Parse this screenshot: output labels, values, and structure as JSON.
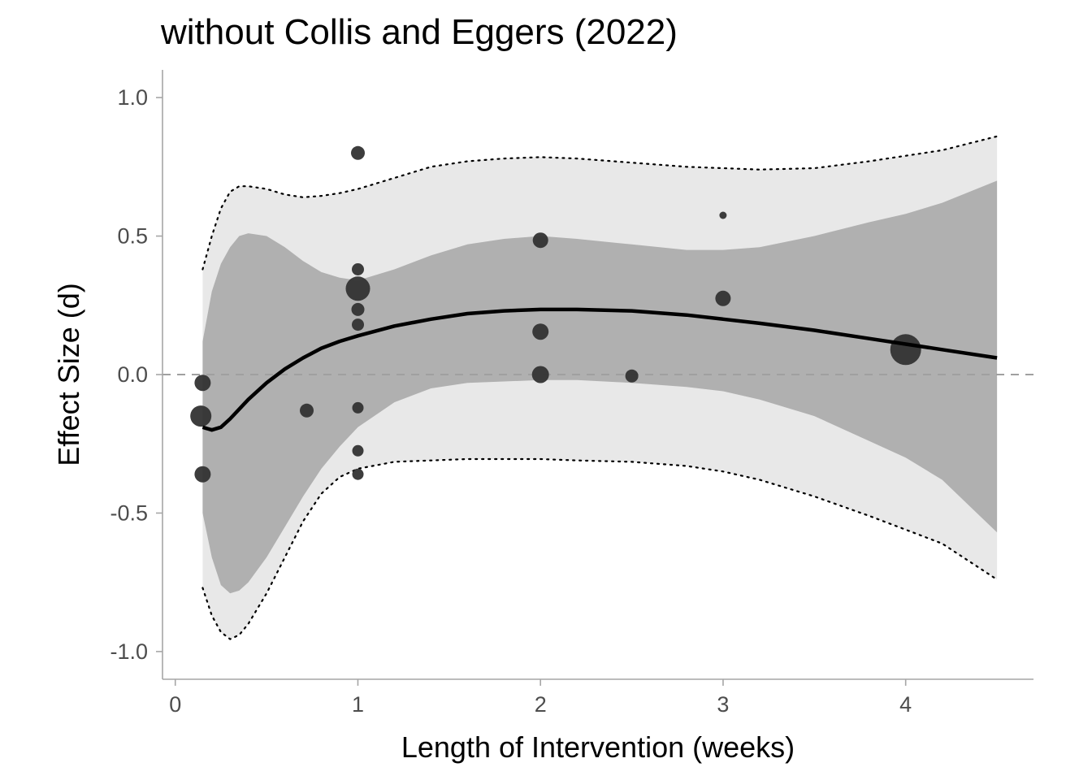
{
  "chart_data": {
    "type": "scatter",
    "title": "without Collis and Eggers (2022)",
    "xlabel": "Length of Intervention (weeks)",
    "ylabel": "Effect Size (d)",
    "xlim": [
      -0.07,
      4.7
    ],
    "ylim": [
      -1.1,
      1.1
    ],
    "x_ticks": [
      0,
      1,
      2,
      3,
      4
    ],
    "x_tick_labels": [
      "0",
      "1",
      "2",
      "3",
      "4"
    ],
    "y_ticks": [
      1.0,
      0.5,
      0.0,
      -0.5,
      -1.0
    ],
    "y_tick_labels": [
      "1.0",
      "0.5",
      "0.0",
      "-0.5",
      "-1.0"
    ],
    "grid": false,
    "reference_line": {
      "y": 0,
      "style": "dashed"
    },
    "points": [
      {
        "x": 0.15,
        "y": -0.03,
        "size": 10
      },
      {
        "x": 0.14,
        "y": -0.15,
        "size": 13
      },
      {
        "x": 0.15,
        "y": -0.36,
        "size": 10
      },
      {
        "x": 0.72,
        "y": -0.13,
        "size": 8.5
      },
      {
        "x": 1.0,
        "y": 0.8,
        "size": 8.5
      },
      {
        "x": 1.0,
        "y": 0.38,
        "size": 7.5
      },
      {
        "x": 1.0,
        "y": 0.31,
        "size": 15
      },
      {
        "x": 1.0,
        "y": 0.235,
        "size": 8
      },
      {
        "x": 1.0,
        "y": 0.18,
        "size": 7.5
      },
      {
        "x": 1.0,
        "y": -0.12,
        "size": 7
      },
      {
        "x": 1.0,
        "y": -0.275,
        "size": 7
      },
      {
        "x": 1.0,
        "y": -0.36,
        "size": 7
      },
      {
        "x": 2.0,
        "y": 0.485,
        "size": 9.5
      },
      {
        "x": 2.0,
        "y": 0.155,
        "size": 10
      },
      {
        "x": 2.0,
        "y": 0.0,
        "size": 10.5
      },
      {
        "x": 2.5,
        "y": -0.005,
        "size": 8
      },
      {
        "x": 3.0,
        "y": 0.575,
        "size": 4.5
      },
      {
        "x": 3.0,
        "y": 0.275,
        "size": 9.5
      },
      {
        "x": 4.0,
        "y": 0.09,
        "size": 19
      }
    ],
    "fit_line": {
      "x": [
        0.15,
        0.2,
        0.25,
        0.3,
        0.4,
        0.5,
        0.6,
        0.7,
        0.8,
        0.9,
        1.0,
        1.2,
        1.4,
        1.6,
        1.8,
        2.0,
        2.2,
        2.5,
        2.8,
        3.0,
        3.2,
        3.5,
        3.8,
        4.0,
        4.2,
        4.5
      ],
      "y": [
        -0.19,
        -0.2,
        -0.19,
        -0.16,
        -0.09,
        -0.03,
        0.02,
        0.06,
        0.095,
        0.12,
        0.14,
        0.175,
        0.2,
        0.22,
        0.23,
        0.235,
        0.235,
        0.23,
        0.215,
        0.2,
        0.185,
        0.16,
        0.13,
        0.11,
        0.09,
        0.06
      ]
    },
    "inner_band": {
      "x": [
        0.15,
        0.2,
        0.25,
        0.3,
        0.35,
        0.4,
        0.5,
        0.6,
        0.7,
        0.8,
        0.9,
        1.0,
        1.2,
        1.4,
        1.6,
        1.8,
        2.0,
        2.2,
        2.5,
        2.8,
        3.0,
        3.2,
        3.5,
        3.8,
        4.0,
        4.2,
        4.5
      ],
      "upper": [
        0.12,
        0.3,
        0.4,
        0.46,
        0.5,
        0.51,
        0.5,
        0.46,
        0.41,
        0.37,
        0.35,
        0.34,
        0.38,
        0.43,
        0.47,
        0.49,
        0.5,
        0.49,
        0.47,
        0.45,
        0.45,
        0.46,
        0.5,
        0.55,
        0.58,
        0.62,
        0.7
      ],
      "lower": [
        -0.5,
        -0.66,
        -0.76,
        -0.79,
        -0.78,
        -0.75,
        -0.66,
        -0.55,
        -0.44,
        -0.34,
        -0.26,
        -0.19,
        -0.1,
        -0.05,
        -0.03,
        -0.025,
        -0.02,
        -0.02,
        -0.03,
        -0.045,
        -0.06,
        -0.09,
        -0.15,
        -0.24,
        -0.3,
        -0.38,
        -0.57
      ]
    },
    "outer_band": {
      "x": [
        0.15,
        0.2,
        0.25,
        0.3,
        0.35,
        0.4,
        0.5,
        0.6,
        0.7,
        0.8,
        0.9,
        1.0,
        1.2,
        1.4,
        1.6,
        1.8,
        2.0,
        2.2,
        2.5,
        2.8,
        3.0,
        3.2,
        3.5,
        3.8,
        4.0,
        4.2,
        4.5
      ],
      "upper": [
        0.38,
        0.5,
        0.6,
        0.66,
        0.68,
        0.68,
        0.67,
        0.65,
        0.64,
        0.645,
        0.655,
        0.67,
        0.71,
        0.75,
        0.77,
        0.78,
        0.785,
        0.78,
        0.765,
        0.75,
        0.745,
        0.74,
        0.745,
        0.77,
        0.79,
        0.81,
        0.86
      ],
      "lower": [
        -0.77,
        -0.87,
        -0.93,
        -0.955,
        -0.94,
        -0.9,
        -0.79,
        -0.66,
        -0.53,
        -0.43,
        -0.37,
        -0.34,
        -0.315,
        -0.31,
        -0.305,
        -0.305,
        -0.305,
        -0.31,
        -0.315,
        -0.33,
        -0.35,
        -0.38,
        -0.44,
        -0.51,
        -0.56,
        -0.61,
        -0.74
      ]
    },
    "colors": {
      "outer_band": "#e8e8e8",
      "inner_band": "#b0b0b0",
      "points": "#333333",
      "fit_line": "#000000",
      "reference_line": "#a0a0a0",
      "axis": "#a6a6a6"
    }
  }
}
